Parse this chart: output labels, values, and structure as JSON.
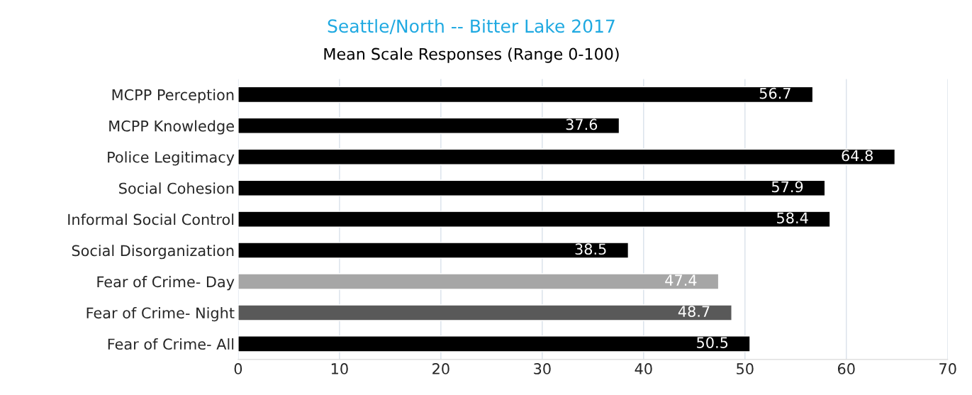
{
  "chart_data": {
    "type": "bar",
    "orientation": "horizontal",
    "title": "Seattle/North -- Bitter Lake 2017",
    "subtitle": "Mean Scale Responses (Range 0-100)",
    "categories": [
      "MCPP Perception",
      "MCPP Knowledge",
      "Police Legitimacy",
      "Social Cohesion",
      "Informal Social Control",
      "Social Disorganization",
      "Fear of Crime- Day",
      "Fear of Crime- Night",
      "Fear of Crime- All"
    ],
    "values": [
      56.7,
      37.6,
      64.8,
      57.9,
      58.4,
      38.5,
      47.4,
      48.7,
      50.5
    ],
    "colors": [
      "#000000",
      "#000000",
      "#000000",
      "#000000",
      "#000000",
      "#000000",
      "#a6a6a6",
      "#595959",
      "#000000"
    ],
    "xlim": [
      0,
      70
    ],
    "xticks": [
      0,
      10,
      20,
      30,
      40,
      50,
      60,
      70
    ],
    "grid": "x",
    "data_labels": true,
    "legend": false
  }
}
